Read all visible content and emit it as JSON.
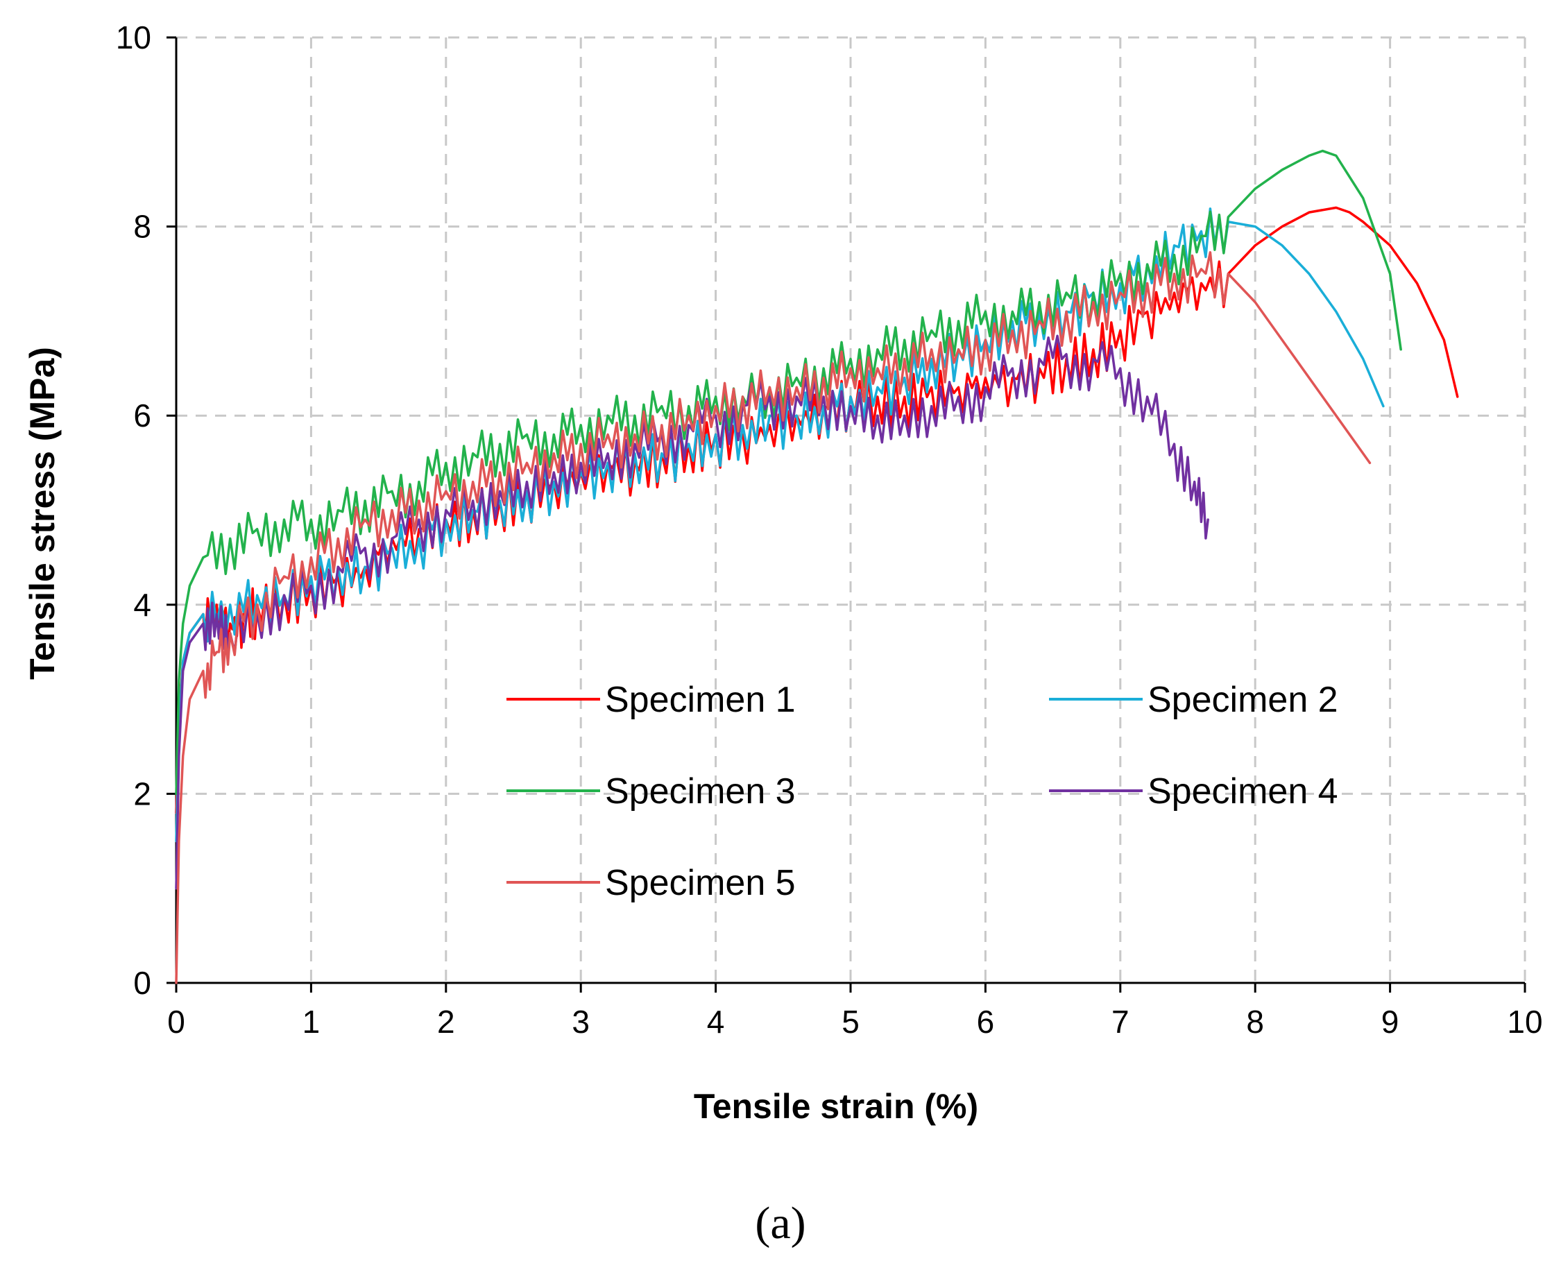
{
  "chart_data": {
    "type": "line",
    "title": "",
    "xlabel": "Tensile strain (%)",
    "ylabel": "Tensile stress (MPa)",
    "xlim": [
      0,
      10
    ],
    "ylim": [
      0,
      10
    ],
    "xticks": [
      "0",
      "1",
      "2",
      "3",
      "4",
      "5",
      "6",
      "7",
      "8",
      "9",
      "10"
    ],
    "yticks": [
      "0",
      "2",
      "4",
      "6",
      "8",
      "10"
    ],
    "grid": true,
    "legend_position": "center-right",
    "caption": "(a)",
    "series": [
      {
        "name": "Specimen 1",
        "color": "#ff0000",
        "x": [
          0,
          0.02,
          0.05,
          0.1,
          0.2,
          0.3,
          0.4,
          0.5,
          0.6,
          0.8,
          1.0,
          1.2,
          1.4,
          1.6,
          1.8,
          2.0,
          2.2,
          2.4,
          2.6,
          2.8,
          3.0,
          3.2,
          3.4,
          3.6,
          3.8,
          4.0,
          4.2,
          4.4,
          4.6,
          4.8,
          5.0,
          5.2,
          5.4,
          5.6,
          5.8,
          6.0,
          6.2,
          6.4,
          6.6,
          6.8,
          7.0,
          7.2,
          7.4,
          7.6,
          7.8,
          8.0,
          8.2,
          8.4,
          8.6,
          8.7,
          8.8,
          9.0,
          9.2,
          9.4,
          9.5
        ],
        "y": [
          1.8,
          2.8,
          3.4,
          3.7,
          3.9,
          4.0,
          3.8,
          3.9,
          4.0,
          4.1,
          4.2,
          4.3,
          4.4,
          4.7,
          4.8,
          4.9,
          5.0,
          5.1,
          5.2,
          5.3,
          5.4,
          5.5,
          5.5,
          5.6,
          5.7,
          5.8,
          5.8,
          5.9,
          6.0,
          6.1,
          6.2,
          6.2,
          6.2,
          6.3,
          6.3,
          6.4,
          6.4,
          6.5,
          6.6,
          6.7,
          6.9,
          7.1,
          7.3,
          7.4,
          7.5,
          7.8,
          8.0,
          8.15,
          8.2,
          8.15,
          8.05,
          7.8,
          7.4,
          6.8,
          6.2
        ]
      },
      {
        "name": "Specimen 2",
        "color": "#1aaed8",
        "x": [
          0,
          0.02,
          0.05,
          0.1,
          0.2,
          0.4,
          0.6,
          0.8,
          1.0,
          1.2,
          1.4,
          1.6,
          1.8,
          2.0,
          2.2,
          2.4,
          2.6,
          2.8,
          3.0,
          3.2,
          3.4,
          3.6,
          3.8,
          4.0,
          4.2,
          4.4,
          4.6,
          4.8,
          5.0,
          5.2,
          5.4,
          5.6,
          5.8,
          6.0,
          6.2,
          6.4,
          6.6,
          6.8,
          7.0,
          7.2,
          7.4,
          7.6,
          7.8,
          8.0,
          8.2,
          8.4,
          8.6,
          8.8,
          8.95
        ],
        "y": [
          1.5,
          2.7,
          3.4,
          3.7,
          3.9,
          4.0,
          4.1,
          4.1,
          4.3,
          4.4,
          4.4,
          4.6,
          4.7,
          4.9,
          5.0,
          5.1,
          5.2,
          5.3,
          5.4,
          5.5,
          5.6,
          5.6,
          5.7,
          5.8,
          5.9,
          6.0,
          6.0,
          6.1,
          6.2,
          6.3,
          6.4,
          6.6,
          6.7,
          6.8,
          7.0,
          7.1,
          7.1,
          7.3,
          7.4,
          7.6,
          7.8,
          7.95,
          8.05,
          8.0,
          7.8,
          7.5,
          7.1,
          6.6,
          6.1
        ]
      },
      {
        "name": "Specimen 3",
        "color": "#22b24c",
        "x": [
          0,
          0.02,
          0.05,
          0.1,
          0.2,
          0.4,
          0.6,
          0.8,
          1.0,
          1.2,
          1.4,
          1.6,
          1.8,
          2.0,
          2.2,
          2.4,
          2.6,
          2.8,
          3.0,
          3.2,
          3.4,
          3.6,
          3.8,
          4.0,
          4.2,
          4.4,
          4.6,
          4.8,
          5.0,
          5.2,
          5.4,
          5.6,
          5.8,
          6.0,
          6.2,
          6.4,
          6.6,
          6.8,
          7.0,
          7.2,
          7.4,
          7.6,
          7.8,
          8.0,
          8.2,
          8.4,
          8.5,
          8.6,
          8.8,
          9.0,
          9.08
        ],
        "y": [
          2.0,
          3.2,
          3.8,
          4.2,
          4.5,
          4.7,
          4.8,
          4.9,
          4.9,
          5.0,
          5.1,
          5.2,
          5.3,
          5.5,
          5.6,
          5.7,
          5.8,
          5.8,
          5.9,
          6.0,
          6.0,
          6.1,
          6.1,
          6.2,
          6.2,
          6.3,
          6.4,
          6.5,
          6.6,
          6.7,
          6.8,
          6.9,
          7.0,
          7.1,
          7.1,
          7.2,
          7.3,
          7.3,
          7.5,
          7.6,
          7.7,
          7.9,
          8.1,
          8.4,
          8.6,
          8.75,
          8.8,
          8.75,
          8.3,
          7.5,
          6.7
        ]
      },
      {
        "name": "Specimen 4",
        "color": "#7030a0",
        "x": [
          0,
          0.02,
          0.05,
          0.1,
          0.2,
          0.3,
          0.4,
          0.6,
          0.8,
          1.0,
          1.2,
          1.4,
          1.6,
          1.8,
          2.0,
          2.2,
          2.4,
          2.6,
          2.8,
          3.0,
          3.2,
          3.4,
          3.6,
          3.8,
          4.0,
          4.2,
          4.4,
          4.6,
          4.8,
          5.0,
          5.2,
          5.4,
          5.6,
          5.8,
          6.0,
          6.2,
          6.4,
          6.6,
          6.8,
          7.0,
          7.2,
          7.4,
          7.55,
          7.65
        ],
        "y": [
          1.0,
          2.4,
          3.3,
          3.6,
          3.8,
          3.9,
          3.7,
          3.9,
          4.1,
          4.2,
          4.4,
          4.6,
          4.7,
          4.9,
          5.0,
          5.1,
          5.2,
          5.3,
          5.4,
          5.5,
          5.6,
          5.7,
          5.8,
          5.9,
          6.0,
          6.1,
          6.2,
          6.2,
          6.2,
          6.1,
          6.0,
          6.0,
          6.1,
          6.2,
          6.3,
          6.5,
          6.6,
          6.65,
          6.6,
          6.5,
          6.2,
          5.7,
          5.3,
          4.9
        ]
      },
      {
        "name": "Specimen 5",
        "color": "#e05555",
        "x": [
          0,
          0.02,
          0.05,
          0.1,
          0.2,
          0.3,
          0.4,
          0.6,
          0.8,
          1.0,
          1.2,
          1.4,
          1.6,
          1.8,
          2.0,
          2.2,
          2.4,
          2.6,
          2.8,
          3.0,
          3.2,
          3.4,
          3.6,
          3.8,
          4.0,
          4.2,
          4.4,
          4.6,
          4.8,
          5.0,
          5.2,
          5.4,
          5.6,
          5.8,
          6.0,
          6.2,
          6.4,
          6.6,
          6.8,
          7.0,
          7.2,
          7.4,
          7.6,
          7.8,
          8.0,
          8.2,
          8.4,
          8.6,
          8.85
        ],
        "y": [
          0.0,
          1.5,
          2.4,
          3.0,
          3.3,
          3.5,
          3.7,
          4.0,
          4.3,
          4.5,
          4.7,
          4.9,
          5.0,
          5.1,
          5.2,
          5.3,
          5.4,
          5.5,
          5.6,
          5.7,
          5.8,
          5.8,
          5.9,
          6.0,
          6.1,
          6.2,
          6.3,
          6.3,
          6.4,
          6.5,
          6.5,
          6.6,
          6.7,
          6.7,
          6.8,
          6.9,
          7.0,
          7.1,
          7.2,
          7.3,
          7.4,
          7.5,
          7.55,
          7.5,
          7.2,
          6.8,
          6.4,
          6.0,
          5.5
        ]
      }
    ]
  }
}
